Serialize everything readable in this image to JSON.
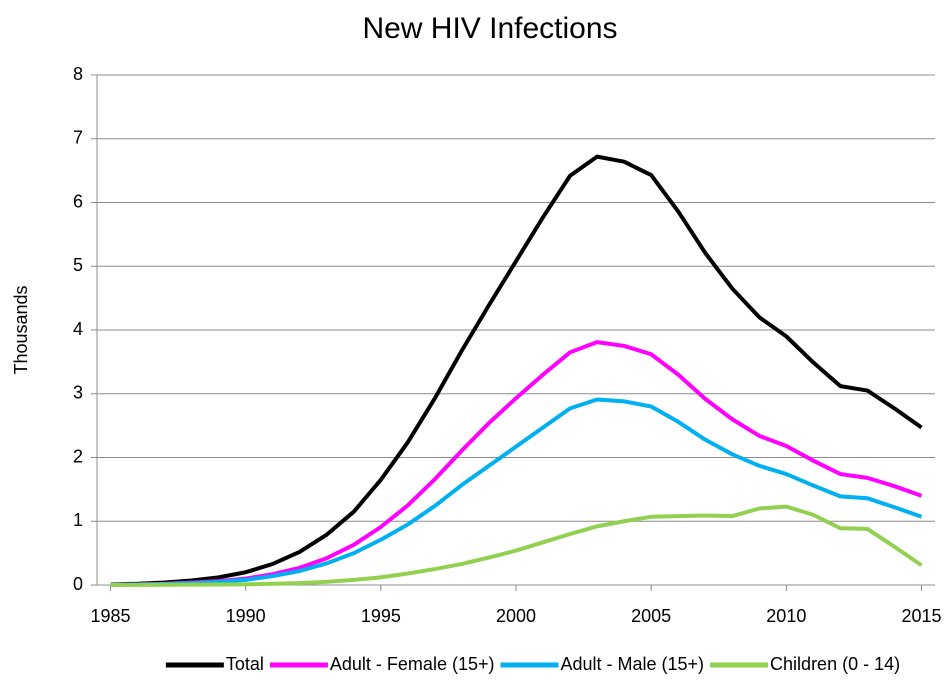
{
  "chart_data": {
    "type": "line",
    "title": "New HIV Infections",
    "y_label": "Thousands",
    "x": [
      1985,
      1986,
      1987,
      1988,
      1989,
      1990,
      1991,
      1992,
      1993,
      1994,
      1995,
      1996,
      1997,
      1998,
      1999,
      2000,
      2001,
      2002,
      2003,
      2004,
      2005,
      2006,
      2007,
      2008,
      2009,
      2010,
      2011,
      2012,
      2013,
      2014,
      2015
    ],
    "series": [
      {
        "name": "Total",
        "color": "#000000",
        "values": [
          0.01,
          0.02,
          0.04,
          0.07,
          0.12,
          0.2,
          0.33,
          0.52,
          0.79,
          1.15,
          1.65,
          2.24,
          2.93,
          3.68,
          4.39,
          5.08,
          5.77,
          6.42,
          6.72,
          6.64,
          6.43,
          5.86,
          5.21,
          4.65,
          4.2,
          3.9,
          3.49,
          3.12,
          3.05,
          2.77,
          2.47
        ]
      },
      {
        "name": "Adult - Female (15+)",
        "color": "#ff00ff",
        "values": [
          0.005,
          0.01,
          0.02,
          0.04,
          0.06,
          0.1,
          0.17,
          0.27,
          0.42,
          0.63,
          0.91,
          1.25,
          1.66,
          2.11,
          2.54,
          2.93,
          3.3,
          3.65,
          3.81,
          3.75,
          3.62,
          3.3,
          2.92,
          2.6,
          2.34,
          2.18,
          1.95,
          1.74,
          1.68,
          1.55,
          1.4
        ]
      },
      {
        "name": "Adult - Male (15+)",
        "color": "#00b0f0",
        "values": [
          0.004,
          0.008,
          0.015,
          0.03,
          0.05,
          0.08,
          0.14,
          0.22,
          0.34,
          0.5,
          0.71,
          0.95,
          1.24,
          1.57,
          1.87,
          2.17,
          2.47,
          2.77,
          2.91,
          2.88,
          2.8,
          2.56,
          2.28,
          2.05,
          1.87,
          1.74,
          1.56,
          1.39,
          1.36,
          1.22,
          1.07
        ]
      },
      {
        "name": "Children (0 - 14)",
        "color": "#92d050",
        "values": [
          0.001,
          0.002,
          0.003,
          0.005,
          0.008,
          0.01,
          0.02,
          0.03,
          0.05,
          0.08,
          0.12,
          0.18,
          0.25,
          0.33,
          0.43,
          0.54,
          0.67,
          0.8,
          0.92,
          1.0,
          1.07,
          1.08,
          1.09,
          1.08,
          1.2,
          1.23,
          1.1,
          0.89,
          0.88,
          0.6,
          0.31
        ]
      }
    ],
    "xlim": [
      1984.5,
      2015.5
    ],
    "xticks": [
      1985,
      1990,
      1995,
      2000,
      2005,
      2010,
      2015
    ],
    "ylim": [
      0,
      8
    ],
    "yticks": [
      0,
      1,
      2,
      3,
      4,
      5,
      6,
      7,
      8
    ],
    "grid": true,
    "legend": "bottom"
  }
}
